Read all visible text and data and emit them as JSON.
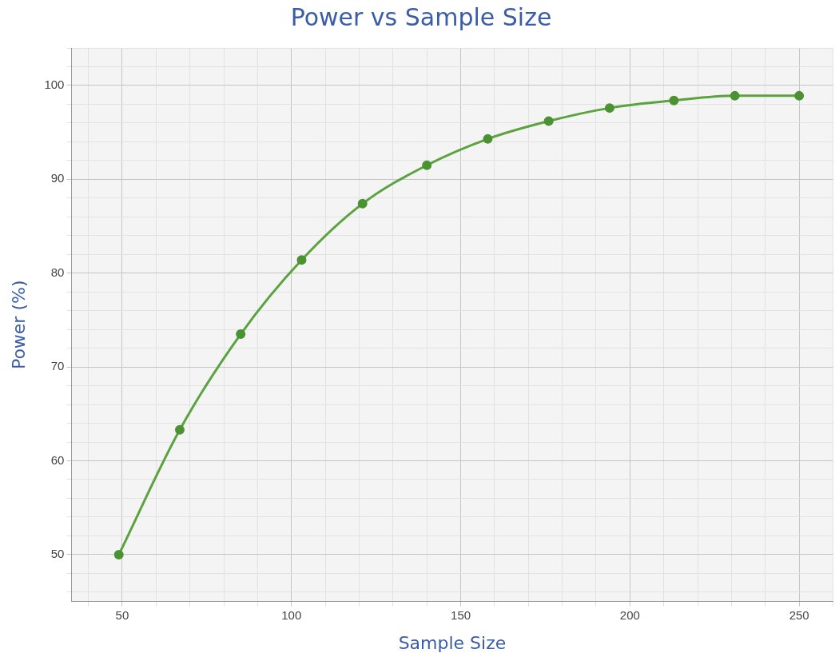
{
  "chart_data": {
    "type": "line",
    "title": "Power vs Sample Size",
    "xlabel": "Sample Size",
    "ylabel": "Power (%)",
    "x": [
      49,
      67,
      85,
      103,
      121,
      140,
      158,
      176,
      194,
      213,
      231,
      250
    ],
    "series": [
      {
        "color": "#5aa33f",
        "values": [
          50,
          63.3,
          73.5,
          81.4,
          87.4,
          91.5,
          94.3,
          96.2,
          97.6,
          98.4,
          98.9,
          98.9
        ]
      }
    ],
    "xlim": [
      35,
      260
    ],
    "xticks": [
      {
        "value": 40,
        "label": null
      },
      50,
      {
        "value": 60,
        "label": null
      },
      {
        "value": 70,
        "label": null
      },
      {
        "value": 80,
        "label": null
      },
      {
        "value": 90,
        "label": null
      },
      100,
      {
        "value": 110,
        "label": null
      },
      {
        "value": 120,
        "label": null
      },
      {
        "value": 130,
        "label": null
      },
      {
        "value": 140,
        "label": null
      },
      150,
      {
        "value": 160,
        "label": null
      },
      {
        "value": 170,
        "label": null
      },
      {
        "value": 180,
        "label": null
      },
      {
        "value": 190,
        "label": null
      },
      200,
      {
        "value": 210,
        "label": null
      },
      {
        "value": 220,
        "label": null
      },
      {
        "value": 230,
        "label": null
      },
      {
        "value": 240,
        "label": null
      },
      250,
      {
        "value": 260,
        "label": null
      }
    ],
    "ylim": [
      45,
      104
    ],
    "yticks": [
      {
        "value": 46,
        "label": null
      },
      {
        "value": 48,
        "label": null
      },
      50,
      {
        "value": 52,
        "label": null
      },
      {
        "value": 54,
        "label": null
      },
      {
        "value": 56,
        "label": null
      },
      {
        "value": 58,
        "label": null
      },
      60,
      {
        "value": 62,
        "label": null
      },
      {
        "value": 64,
        "label": null
      },
      {
        "value": 66,
        "label": null
      },
      {
        "value": 68,
        "label": null
      },
      70,
      {
        "value": 72,
        "label": null
      },
      {
        "value": 74,
        "label": null
      },
      {
        "value": 76,
        "label": null
      },
      {
        "value": 78,
        "label": null
      },
      80,
      {
        "value": 82,
        "label": null
      },
      {
        "value": 84,
        "label": null
      },
      {
        "value": 86,
        "label": null
      },
      {
        "value": 88,
        "label": null
      },
      90,
      {
        "value": 92,
        "label": null
      },
      {
        "value": 94,
        "label": null
      },
      {
        "value": 96,
        "label": null
      },
      {
        "value": 98,
        "label": null
      },
      100,
      {
        "value": 102,
        "label": null
      },
      {
        "value": 104,
        "label": null
      }
    ],
    "grid": true,
    "legend": false,
    "marker": "circle",
    "line_style": "solid"
  }
}
